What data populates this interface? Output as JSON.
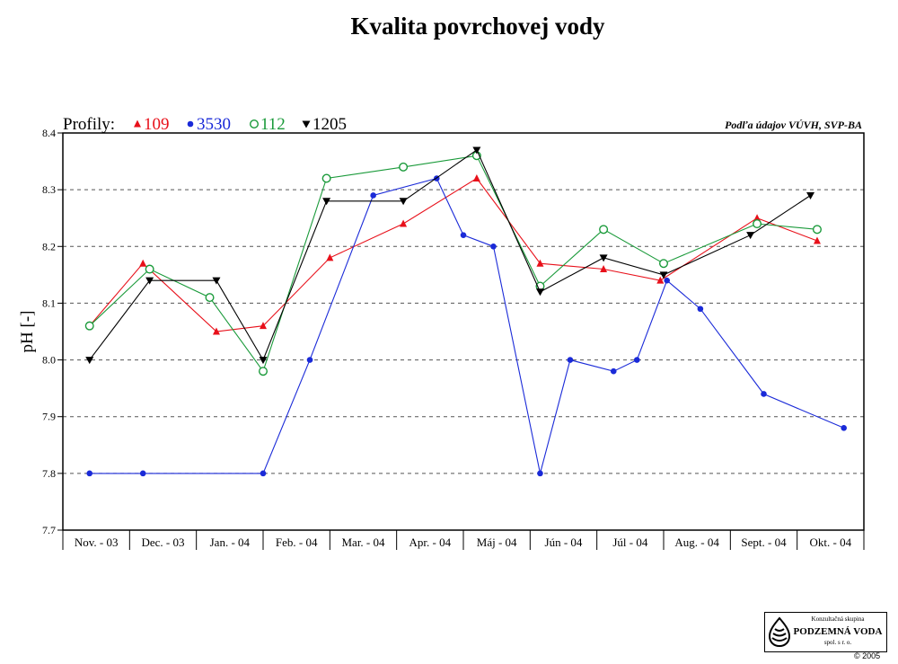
{
  "chart_data": {
    "type": "line",
    "title": "Kvalita povrchovej vody",
    "ylabel": "pH [-]",
    "xlabel": "",
    "legend_title": "Profily:",
    "source_note": "Podľa údajov VÚVH, SVP-BA",
    "ylim": [
      7.7,
      8.4
    ],
    "yticks": [
      "8.4",
      "8.3",
      "8.2",
      "8.1",
      "8.0",
      "7.9",
      "7.8",
      "7.7"
    ],
    "grid": true,
    "legend_placement": "top-left",
    "categories": [
      "Nov. - 03",
      "Dec. - 03",
      "Jan. - 04",
      "Feb. - 04",
      "Mar. - 04",
      "Apr. - 04",
      "Máj - 04",
      "Jún - 04",
      "Júl - 04",
      "Aug. - 04",
      "Sept. - 04",
      "Okt. - 04"
    ],
    "series": [
      {
        "name": "109",
        "color": "#e8101a",
        "marker": "triangle-up",
        "points": [
          [
            0.4,
            8.06
          ],
          [
            1.2,
            8.17
          ],
          [
            2.3,
            8.05
          ],
          [
            3.0,
            8.06
          ],
          [
            4.0,
            8.18
          ],
          [
            5.1,
            8.24
          ],
          [
            6.2,
            8.32
          ],
          [
            7.15,
            8.17
          ],
          [
            8.1,
            8.16
          ],
          [
            8.95,
            8.14
          ],
          [
            10.4,
            8.25
          ],
          [
            11.3,
            8.21
          ]
        ]
      },
      {
        "name": "3530",
        "color": "#1a2ad8",
        "marker": "circle-filled",
        "points": [
          [
            0.4,
            7.8
          ],
          [
            1.2,
            7.8
          ],
          [
            3.0,
            7.8
          ],
          [
            3.7,
            8.0
          ],
          [
            4.65,
            8.29
          ],
          [
            5.6,
            8.32
          ],
          [
            6.0,
            8.22
          ],
          [
            6.45,
            8.2
          ],
          [
            7.15,
            7.8
          ],
          [
            7.6,
            8.0
          ],
          [
            8.25,
            7.98
          ],
          [
            8.6,
            8.0
          ],
          [
            9.05,
            8.14
          ],
          [
            9.55,
            8.09
          ],
          [
            10.5,
            7.94
          ],
          [
            11.7,
            7.88
          ]
        ]
      },
      {
        "name": "112",
        "color": "#1a9a3a",
        "marker": "circle-open",
        "points": [
          [
            0.4,
            8.06
          ],
          [
            1.3,
            8.16
          ],
          [
            2.2,
            8.11
          ],
          [
            3.0,
            7.98
          ],
          [
            3.95,
            8.32
          ],
          [
            5.1,
            8.34
          ],
          [
            6.2,
            8.36
          ],
          [
            7.15,
            8.13
          ],
          [
            8.1,
            8.23
          ],
          [
            9.0,
            8.17
          ],
          [
            10.4,
            8.24
          ],
          [
            11.3,
            8.23
          ]
        ]
      },
      {
        "name": "1205",
        "color": "#000000",
        "marker": "triangle-down",
        "points": [
          [
            0.4,
            8.0
          ],
          [
            1.3,
            8.14
          ],
          [
            2.3,
            8.14
          ],
          [
            3.0,
            8.0
          ],
          [
            3.95,
            8.28
          ],
          [
            5.1,
            8.28
          ],
          [
            6.2,
            8.37
          ],
          [
            7.15,
            8.12
          ],
          [
            8.1,
            8.18
          ],
          [
            9.0,
            8.15
          ],
          [
            10.3,
            8.22
          ],
          [
            11.2,
            8.29
          ]
        ]
      }
    ]
  },
  "logo": {
    "line1": "Konzultačná skupina",
    "line2": "PODZEMNÁ VODA",
    "line3": "spol. s r. o."
  },
  "copyright": "© 2005"
}
